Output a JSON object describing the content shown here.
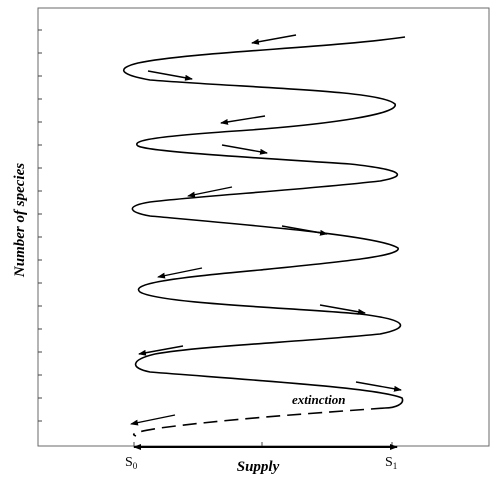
{
  "diagram": {
    "y_axis_label": "Number of species",
    "x_axis_label": "Supply",
    "x_tick_s0": "S",
    "x_tick_s0_sub": "0",
    "x_tick_s1": "S",
    "x_tick_s1_sub": "1",
    "annotation": "extinction",
    "line_color": "#000000",
    "frame_color": "#6a6a6a"
  }
}
